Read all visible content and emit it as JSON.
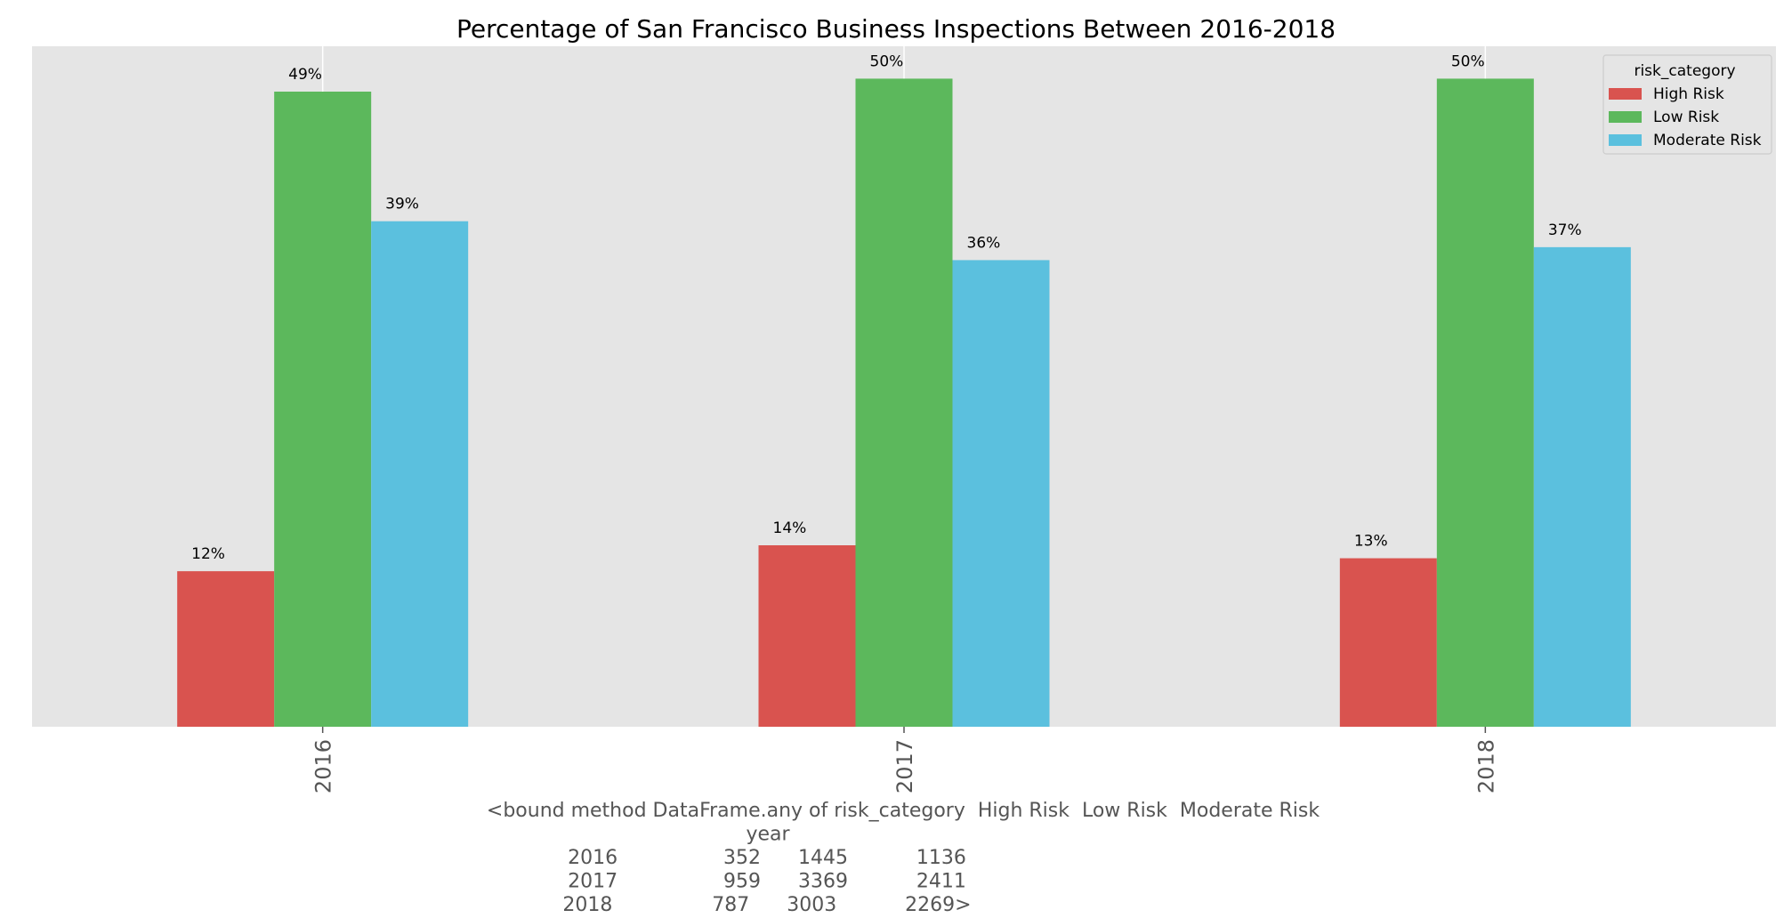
{
  "chart_data": {
    "type": "bar",
    "title": "Percentage of San Francisco Business Inspections Between 2016-2018",
    "categories": [
      "2016",
      "2017",
      "2018"
    ],
    "series": [
      {
        "name": "High Risk",
        "color": "#d9534f",
        "values": [
          12,
          14,
          13
        ],
        "labels": [
          "12%",
          "14%",
          "13%"
        ]
      },
      {
        "name": "Low Risk",
        "color": "#5cb85c",
        "values": [
          49,
          50,
          50
        ],
        "labels": [
          "49%",
          "50%",
          "50%"
        ]
      },
      {
        "name": "Moderate Risk",
        "color": "#5bc0de",
        "values": [
          39,
          36,
          37
        ],
        "labels": [
          "39%",
          "36%",
          "37%"
        ]
      }
    ],
    "legend_title": "risk_category",
    "legend_position": "top-right",
    "ylim": [
      0,
      52.5
    ],
    "y_axis_visible": false,
    "grid": true,
    "tick_rotation": "vertical",
    "xlabel_lines": [
      "<bound method DataFrame.any of risk_category  High Risk  Low Risk  Moderate Risk",
      "year",
      "2016                 352      1445           1136",
      "2017                 959      3369           2411",
      "2018                787      3003           2269>"
    ],
    "background_color": "#e5e5e5"
  }
}
